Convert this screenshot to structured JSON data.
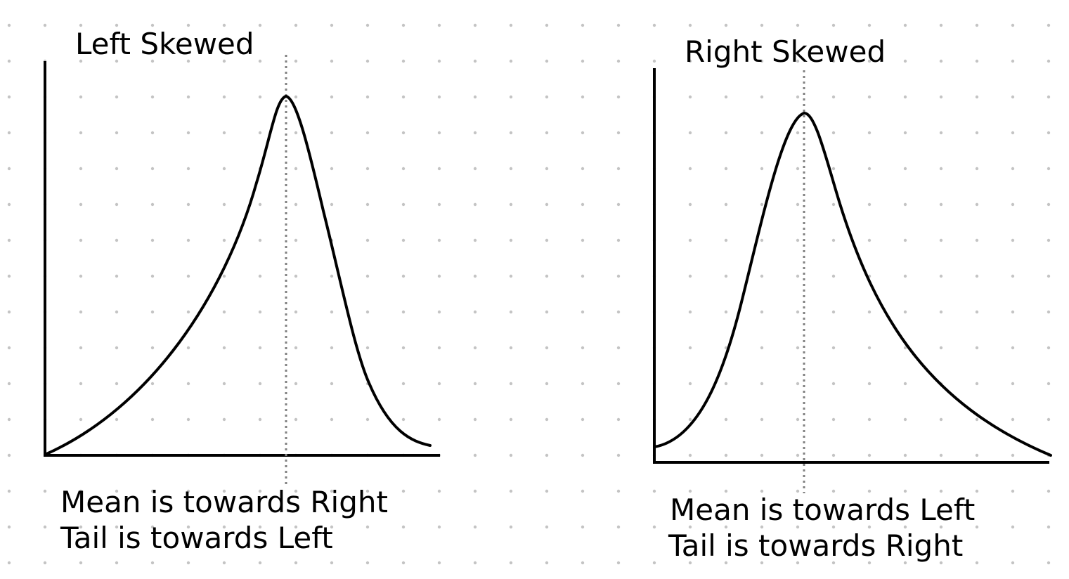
{
  "background": {
    "color": "#ffffff",
    "dot_color": "#c4c4c4"
  },
  "colors": {
    "curve": "#000000",
    "axis": "#000000",
    "marker_line": "#808080"
  },
  "left_panel": {
    "title": "Left Skewed",
    "caption_line1": "Mean is towards Right",
    "caption_line2": "Tail is towards Left"
  },
  "right_panel": {
    "title": "Right Skewed",
    "caption_line1": "Mean is towards Left",
    "caption_line2": "Tail is towards Right"
  }
}
